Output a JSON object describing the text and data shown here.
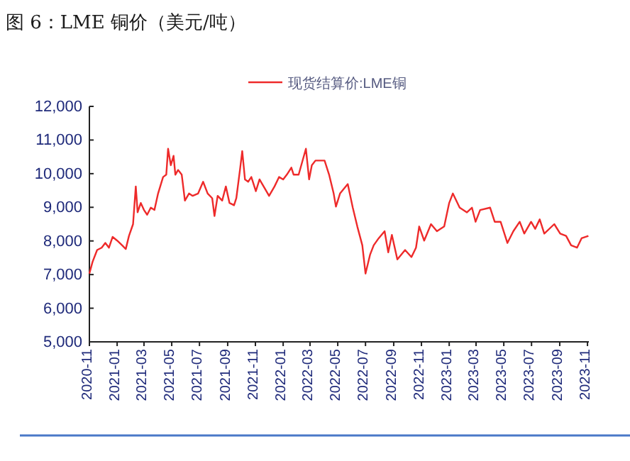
{
  "chart_data": {
    "type": "line",
    "title": "图 6：LME 铜价（美元/吨）",
    "legend": "top",
    "x": [
      "2020-11-01",
      "2020-11-08",
      "2020-11-18",
      "2020-11-28",
      "2020-12-06",
      "2020-12-14",
      "2020-12-22",
      "2021-01-01",
      "2021-01-12",
      "2021-01-20",
      "2021-01-27",
      "2021-02-05",
      "2021-02-11",
      "2021-02-15",
      "2021-02-22",
      "2021-03-01",
      "2021-03-08",
      "2021-03-16",
      "2021-03-24",
      "2021-04-01",
      "2021-04-12",
      "2021-04-19",
      "2021-04-23",
      "2021-04-29",
      "2021-05-05",
      "2021-05-09",
      "2021-05-15",
      "2021-05-23",
      "2021-05-30",
      "2021-06-08",
      "2021-06-16",
      "2021-06-28",
      "2021-07-09",
      "2021-07-19",
      "2021-07-29",
      "2021-08-03",
      "2021-08-10",
      "2021-08-20",
      "2021-08-28",
      "2021-09-05",
      "2021-09-15",
      "2021-09-20",
      "2021-09-28",
      "2021-10-03",
      "2021-10-09",
      "2021-10-16",
      "2021-10-23",
      "2021-11-02",
      "2021-11-10",
      "2021-11-22",
      "2021-12-01",
      "2021-12-13",
      "2021-12-23",
      "2022-01-01",
      "2022-01-09",
      "2022-01-19",
      "2022-01-24",
      "2022-02-04",
      "2022-02-20",
      "2022-02-27",
      "2022-03-05",
      "2022-03-13",
      "2022-04-02",
      "2022-04-12",
      "2022-04-22",
      "2022-04-27",
      "2022-05-06",
      "2022-05-23",
      "2022-06-03",
      "2022-06-13",
      "2022-06-24",
      "2022-07-01",
      "2022-07-11",
      "2022-07-19",
      "2022-07-30",
      "2022-08-12",
      "2022-08-20",
      "2022-08-28",
      "2022-09-09",
      "2022-09-26",
      "2022-10-10",
      "2022-10-20",
      "2022-10-27",
      "2022-11-07",
      "2022-11-22",
      "2022-12-05",
      "2022-12-21",
      "2023-01-01",
      "2023-01-09",
      "2023-01-24",
      "2023-02-09",
      "2023-02-20",
      "2023-02-28",
      "2023-03-10",
      "2023-04-01",
      "2023-04-11",
      "2023-04-24",
      "2023-05-09",
      "2023-05-22",
      "2023-06-05",
      "2023-06-15",
      "2023-06-30",
      "2023-07-09",
      "2023-07-19",
      "2023-07-29",
      "2023-08-20",
      "2023-09-02",
      "2023-09-15",
      "2023-09-26",
      "2023-10-09",
      "2023-10-19",
      "2023-11-03"
    ],
    "series": [
      {
        "name": "现货结算价:LME铜",
        "color": "#ee2a2a",
        "values": [
          7030,
          7380,
          7730,
          7800,
          7940,
          7800,
          8120,
          8010,
          7870,
          7760,
          8150,
          8500,
          9620,
          8850,
          9130,
          8920,
          8780,
          8990,
          8920,
          9410,
          9900,
          9970,
          10740,
          10250,
          10530,
          9970,
          10110,
          9970,
          9200,
          9410,
          9340,
          9410,
          9760,
          9410,
          9270,
          8740,
          9340,
          9200,
          9620,
          9130,
          9060,
          9270,
          10110,
          10670,
          9830,
          9760,
          9900,
          9480,
          9830,
          9550,
          9340,
          9620,
          9900,
          9830,
          9970,
          10180,
          9970,
          9970,
          10740,
          9830,
          10250,
          10390,
          10390,
          9970,
          9410,
          9020,
          9410,
          9690,
          8990,
          8430,
          7870,
          7030,
          7590,
          7870,
          8080,
          8290,
          7660,
          8180,
          7450,
          7730,
          7520,
          7800,
          8430,
          8010,
          8500,
          8290,
          8430,
          9130,
          9410,
          8990,
          8850,
          8990,
          8570,
          8920,
          8990,
          8570,
          8570,
          7940,
          8290,
          8570,
          8220,
          8570,
          8360,
          8640,
          8220,
          8500,
          8220,
          8150,
          7870,
          7800,
          8080,
          8150
        ]
      }
    ],
    "xlim": [
      "2020-11-01",
      "2023-11-04"
    ],
    "xticks": [
      {
        "value": "2020-11-01",
        "label": "2020-11"
      },
      {
        "value": "2021-01-01",
        "label": "2021-01"
      },
      {
        "value": "2021-03-01",
        "label": "2021-03"
      },
      {
        "value": "2021-05-01",
        "label": "2021-05"
      },
      {
        "value": "2021-07-01",
        "label": "2021-07"
      },
      {
        "value": "2021-09-01",
        "label": "2021-09"
      },
      {
        "value": "2021-11-01",
        "label": "2021-11"
      },
      {
        "value": "2022-01-01",
        "label": "2022-01"
      },
      {
        "value": "2022-03-01",
        "label": "2022-03"
      },
      {
        "value": "2022-05-01",
        "label": "2022-05"
      },
      {
        "value": "2022-07-01",
        "label": "2022-07"
      },
      {
        "value": "2022-09-01",
        "label": "2022-09"
      },
      {
        "value": "2022-11-01",
        "label": "2022-11"
      },
      {
        "value": "2023-01-01",
        "label": "2023-01"
      },
      {
        "value": "2023-03-01",
        "label": "2023-03"
      },
      {
        "value": "2023-05-01",
        "label": "2023-05"
      },
      {
        "value": "2023-07-01",
        "label": "2023-07"
      },
      {
        "value": "2023-09-01",
        "label": "2023-09"
      },
      {
        "value": "2023-11-01",
        "label": "2023-11"
      }
    ],
    "ylim": [
      5000,
      12000
    ],
    "yticks": [
      {
        "value": 5000,
        "label": "5,000"
      },
      {
        "value": 6000,
        "label": "6,000"
      },
      {
        "value": 7000,
        "label": "7,000"
      },
      {
        "value": 8000,
        "label": "8,000"
      },
      {
        "value": 9000,
        "label": "9,000"
      },
      {
        "value": 10000,
        "label": "10,000"
      },
      {
        "value": 11000,
        "label": "11,000"
      },
      {
        "value": 12000,
        "label": "12,000"
      }
    ]
  }
}
